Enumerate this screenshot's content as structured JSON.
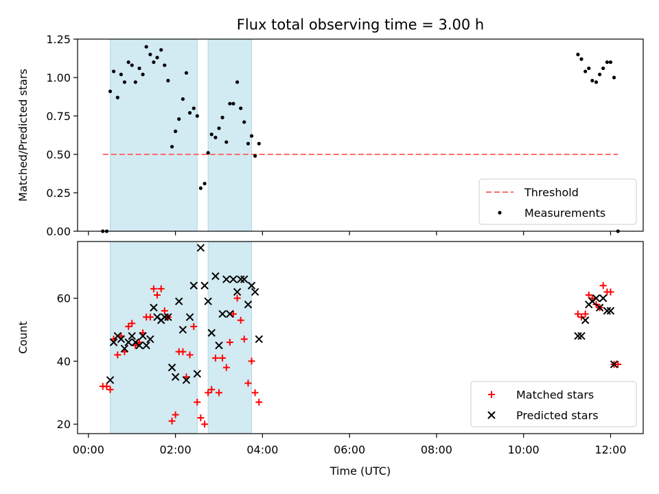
{
  "title": "Flux total observing time = 3.00 h",
  "colors": {
    "band": "#add8e6",
    "threshold": "#ff6b6b",
    "measurement": "#000000",
    "matched": "#ff0000",
    "predicted": "#000000"
  },
  "chart_data": [
    {
      "type": "scatter",
      "xlabel": "",
      "ylabel": "Matched/Predicted stars",
      "xlim": [
        -0.25,
        12.75
      ],
      "ylim": [
        0,
        1.25
      ],
      "yticks": [
        0.0,
        0.25,
        0.5,
        0.75,
        1.0,
        1.25
      ],
      "ytick_labels": [
        "0.00",
        "0.25",
        "0.50",
        "0.75",
        "1.00",
        "1.25"
      ],
      "shaded_intervals": [
        [
          0.5,
          2.5
        ],
        [
          2.75,
          3.75
        ]
      ],
      "legend_position": "lower-right",
      "threshold": {
        "name": "Threshold",
        "value": 0.5,
        "x": [
          0.33,
          12.17
        ]
      },
      "series": [
        {
          "name": "Measurements",
          "points": [
            [
              0.33,
              0.0
            ],
            [
              0.42,
              0.0
            ],
            [
              0.5,
              0.91
            ],
            [
              0.58,
              1.04
            ],
            [
              0.67,
              0.87
            ],
            [
              0.75,
              1.02
            ],
            [
              0.83,
              0.97
            ],
            [
              0.92,
              1.1
            ],
            [
              1.0,
              1.08
            ],
            [
              1.08,
              0.97
            ],
            [
              1.17,
              1.06
            ],
            [
              1.25,
              1.02
            ],
            [
              1.33,
              1.2
            ],
            [
              1.42,
              1.15
            ],
            [
              1.5,
              1.1
            ],
            [
              1.58,
              1.13
            ],
            [
              1.67,
              1.18
            ],
            [
              1.75,
              1.08
            ],
            [
              1.83,
              0.98
            ],
            [
              1.92,
              0.55
            ],
            [
              2.0,
              0.65
            ],
            [
              2.08,
              0.73
            ],
            [
              2.17,
              0.86
            ],
            [
              2.25,
              1.03
            ],
            [
              2.33,
              0.77
            ],
            [
              2.42,
              0.8
            ],
            [
              2.5,
              0.75
            ],
            [
              2.58,
              0.28
            ],
            [
              2.67,
              0.31
            ],
            [
              2.75,
              0.51
            ],
            [
              2.83,
              0.63
            ],
            [
              2.92,
              0.61
            ],
            [
              3.0,
              0.67
            ],
            [
              3.08,
              0.74
            ],
            [
              3.17,
              0.58
            ],
            [
              3.25,
              0.83
            ],
            [
              3.33,
              0.83
            ],
            [
              3.42,
              0.97
            ],
            [
              3.5,
              0.8
            ],
            [
              3.58,
              0.71
            ],
            [
              3.67,
              0.57
            ],
            [
              3.75,
              0.62
            ],
            [
              3.83,
              0.49
            ],
            [
              3.92,
              0.57
            ],
            [
              11.25,
              1.15
            ],
            [
              11.33,
              1.12
            ],
            [
              11.42,
              1.04
            ],
            [
              11.5,
              1.06
            ],
            [
              11.58,
              0.98
            ],
            [
              11.67,
              0.97
            ],
            [
              11.75,
              1.02
            ],
            [
              11.83,
              1.06
            ],
            [
              11.92,
              1.1
            ],
            [
              12.0,
              1.1
            ],
            [
              12.08,
              1.0
            ],
            [
              12.17,
              0.0
            ]
          ]
        }
      ]
    },
    {
      "type": "scatter",
      "xlabel": "Time (UTC)",
      "ylabel": "Count",
      "xlim": [
        -0.25,
        12.75
      ],
      "ylim": [
        17,
        78
      ],
      "yticks": [
        20,
        40,
        60
      ],
      "ytick_labels": [
        "20",
        "40",
        "60"
      ],
      "xticks": [
        0,
        2,
        4,
        6,
        8,
        10,
        12
      ],
      "xtick_labels": [
        "00:00",
        "02:00",
        "04:00",
        "06:00",
        "08:00",
        "10:00",
        "12:00"
      ],
      "shaded_intervals": [
        [
          0.5,
          2.5
        ],
        [
          2.75,
          3.75
        ]
      ],
      "legend_position": "lower-right",
      "series": [
        {
          "name": "Matched stars",
          "marker": "plus",
          "points": [
            [
              0.33,
              32
            ],
            [
              0.42,
              32
            ],
            [
              0.5,
              31
            ],
            [
              0.58,
              47
            ],
            [
              0.67,
              42
            ],
            [
              0.75,
              48
            ],
            [
              0.83,
              43
            ],
            [
              0.92,
              51
            ],
            [
              1.0,
              52
            ],
            [
              1.08,
              45
            ],
            [
              1.17,
              46
            ],
            [
              1.25,
              49
            ],
            [
              1.33,
              54
            ],
            [
              1.42,
              54
            ],
            [
              1.5,
              63
            ],
            [
              1.58,
              61
            ],
            [
              1.67,
              63
            ],
            [
              1.75,
              56
            ],
            [
              1.83,
              54
            ],
            [
              1.92,
              21
            ],
            [
              2.0,
              23
            ],
            [
              2.08,
              43
            ],
            [
              2.17,
              43
            ],
            [
              2.25,
              35
            ],
            [
              2.33,
              42
            ],
            [
              2.42,
              51
            ],
            [
              2.5,
              27
            ],
            [
              2.58,
              22
            ],
            [
              2.67,
              20
            ],
            [
              2.75,
              30
            ],
            [
              2.83,
              31
            ],
            [
              2.92,
              41
            ],
            [
              3.0,
              30
            ],
            [
              3.08,
              41
            ],
            [
              3.17,
              38
            ],
            [
              3.25,
              46
            ],
            [
              3.33,
              55
            ],
            [
              3.42,
              60
            ],
            [
              3.5,
              53
            ],
            [
              3.58,
              47
            ],
            [
              3.67,
              33
            ],
            [
              3.75,
              40
            ],
            [
              3.83,
              30
            ],
            [
              3.92,
              27
            ],
            [
              11.25,
              55
            ],
            [
              11.33,
              54
            ],
            [
              11.42,
              55
            ],
            [
              11.5,
              61
            ],
            [
              11.58,
              60
            ],
            [
              11.67,
              58
            ],
            [
              11.75,
              57
            ],
            [
              11.83,
              64
            ],
            [
              11.92,
              62
            ],
            [
              12.0,
              62
            ],
            [
              12.08,
              39
            ],
            [
              12.17,
              39
            ]
          ]
        },
        {
          "name": "Predicted stars",
          "marker": "x",
          "points": [
            [
              0.5,
              34
            ],
            [
              0.58,
              46
            ],
            [
              0.67,
              48
            ],
            [
              0.75,
              47
            ],
            [
              0.83,
              44
            ],
            [
              0.92,
              46
            ],
            [
              1.0,
              48
            ],
            [
              1.08,
              46
            ],
            [
              1.17,
              45
            ],
            [
              1.25,
              48
            ],
            [
              1.33,
              45
            ],
            [
              1.42,
              47
            ],
            [
              1.5,
              57
            ],
            [
              1.58,
              54
            ],
            [
              1.67,
              53
            ],
            [
              1.75,
              54
            ],
            [
              1.83,
              54
            ],
            [
              1.92,
              38
            ],
            [
              2.0,
              35
            ],
            [
              2.08,
              59
            ],
            [
              2.17,
              50
            ],
            [
              2.25,
              34
            ],
            [
              2.33,
              54
            ],
            [
              2.42,
              64
            ],
            [
              2.5,
              36
            ],
            [
              2.58,
              76
            ],
            [
              2.67,
              64
            ],
            [
              2.75,
              59
            ],
            [
              2.83,
              49
            ],
            [
              2.92,
              67
            ],
            [
              3.0,
              45
            ],
            [
              3.08,
              55
            ],
            [
              3.17,
              66
            ],
            [
              3.25,
              55
            ],
            [
              3.33,
              66
            ],
            [
              3.42,
              62
            ],
            [
              3.5,
              66
            ],
            [
              3.58,
              66
            ],
            [
              3.67,
              58
            ],
            [
              3.75,
              64
            ],
            [
              3.83,
              62
            ],
            [
              3.92,
              47
            ],
            [
              11.25,
              48
            ],
            [
              11.33,
              48
            ],
            [
              11.42,
              53
            ],
            [
              11.5,
              58
            ],
            [
              11.58,
              59
            ],
            [
              11.67,
              60
            ],
            [
              11.75,
              57
            ],
            [
              11.83,
              60
            ],
            [
              11.92,
              56
            ],
            [
              12.0,
              56
            ],
            [
              12.08,
              39
            ]
          ]
        }
      ]
    }
  ]
}
